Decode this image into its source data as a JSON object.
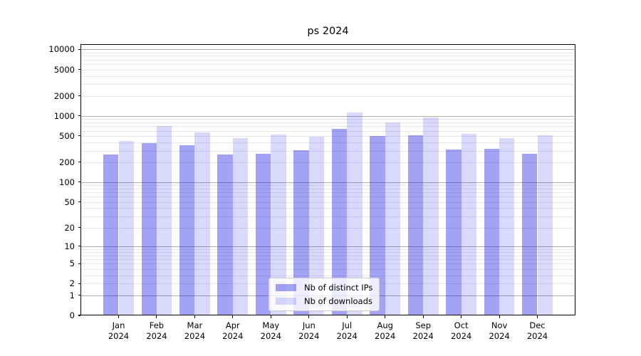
{
  "title": "ps 2024",
  "chart_data": {
    "type": "bar",
    "title": "ps 2024",
    "categories": [
      "Jan",
      "Feb",
      "Mar",
      "Apr",
      "May",
      "Jun",
      "Jul",
      "Aug",
      "Sep",
      "Oct",
      "Nov",
      "Dec"
    ],
    "x_year": "2024",
    "series": [
      {
        "name": "Nb of distinct IPs",
        "color": "rgba(0,0,230,0.36)",
        "swatch_hex": "#a6a6f4",
        "values": [
          265,
          390,
          358,
          263,
          272,
          304,
          640,
          498,
          507,
          312,
          319,
          266
        ]
      },
      {
        "name": "Nb of downloads",
        "color": "rgba(0,0,230,0.15)",
        "swatch_hex": "#d9d9f9",
        "values": [
          424,
          699,
          563,
          459,
          521,
          486,
          1118,
          797,
          938,
          537,
          463,
          511
        ]
      }
    ],
    "y_scale": "log1p",
    "y_ticks": [
      10000,
      5000,
      2000,
      1000,
      500,
      200,
      100,
      50,
      20,
      10,
      5,
      2,
      1,
      0
    ],
    "y_major_gridlines": [
      1,
      10,
      100,
      1000,
      10000
    ],
    "ylim": [
      0,
      12000
    ],
    "grid": true,
    "legend_position": "lower center",
    "colors": {
      "major_grid": "#b0b0b0",
      "minor_grid": "#e8e8e8",
      "axis": "#000000",
      "legend_border": "#cccccc"
    }
  }
}
